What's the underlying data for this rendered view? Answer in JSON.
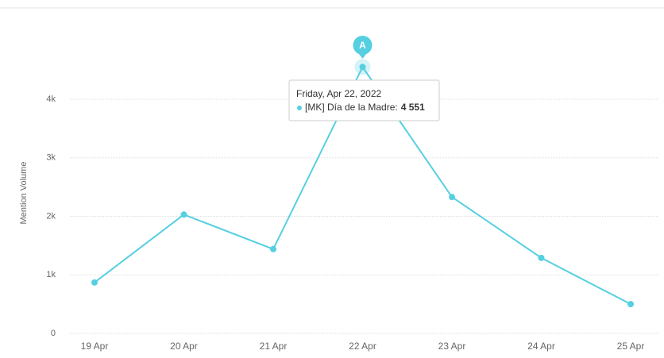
{
  "chart_data": {
    "type": "line",
    "y_label": "Mention Volume",
    "categories": [
      "19 Apr",
      "20 Apr",
      "21 Apr",
      "22 Apr",
      "23 Apr",
      "24 Apr",
      "25 Apr"
    ],
    "series": [
      {
        "name": "[MK] Día de la Madre:",
        "color": "#56cfe1",
        "values": [
          870,
          2030,
          1440,
          4551,
          2330,
          1290,
          500
        ],
        "value_labels": [
          null,
          null,
          null,
          "4 551",
          null,
          null,
          null
        ]
      }
    ],
    "ylim": [
      0,
      5500
    ],
    "yticks": [
      0,
      {
        "value": 1000,
        "label": "1k"
      },
      {
        "value": 2000,
        "label": "2k"
      },
      {
        "value": 3000,
        "label": "3k"
      },
      {
        "value": 4000,
        "label": "4k"
      }
    ],
    "grid": true,
    "annotation": {
      "label": "A",
      "index": 3
    },
    "tooltip": {
      "title": "Friday, Apr 22, 2022",
      "index": 3
    }
  }
}
